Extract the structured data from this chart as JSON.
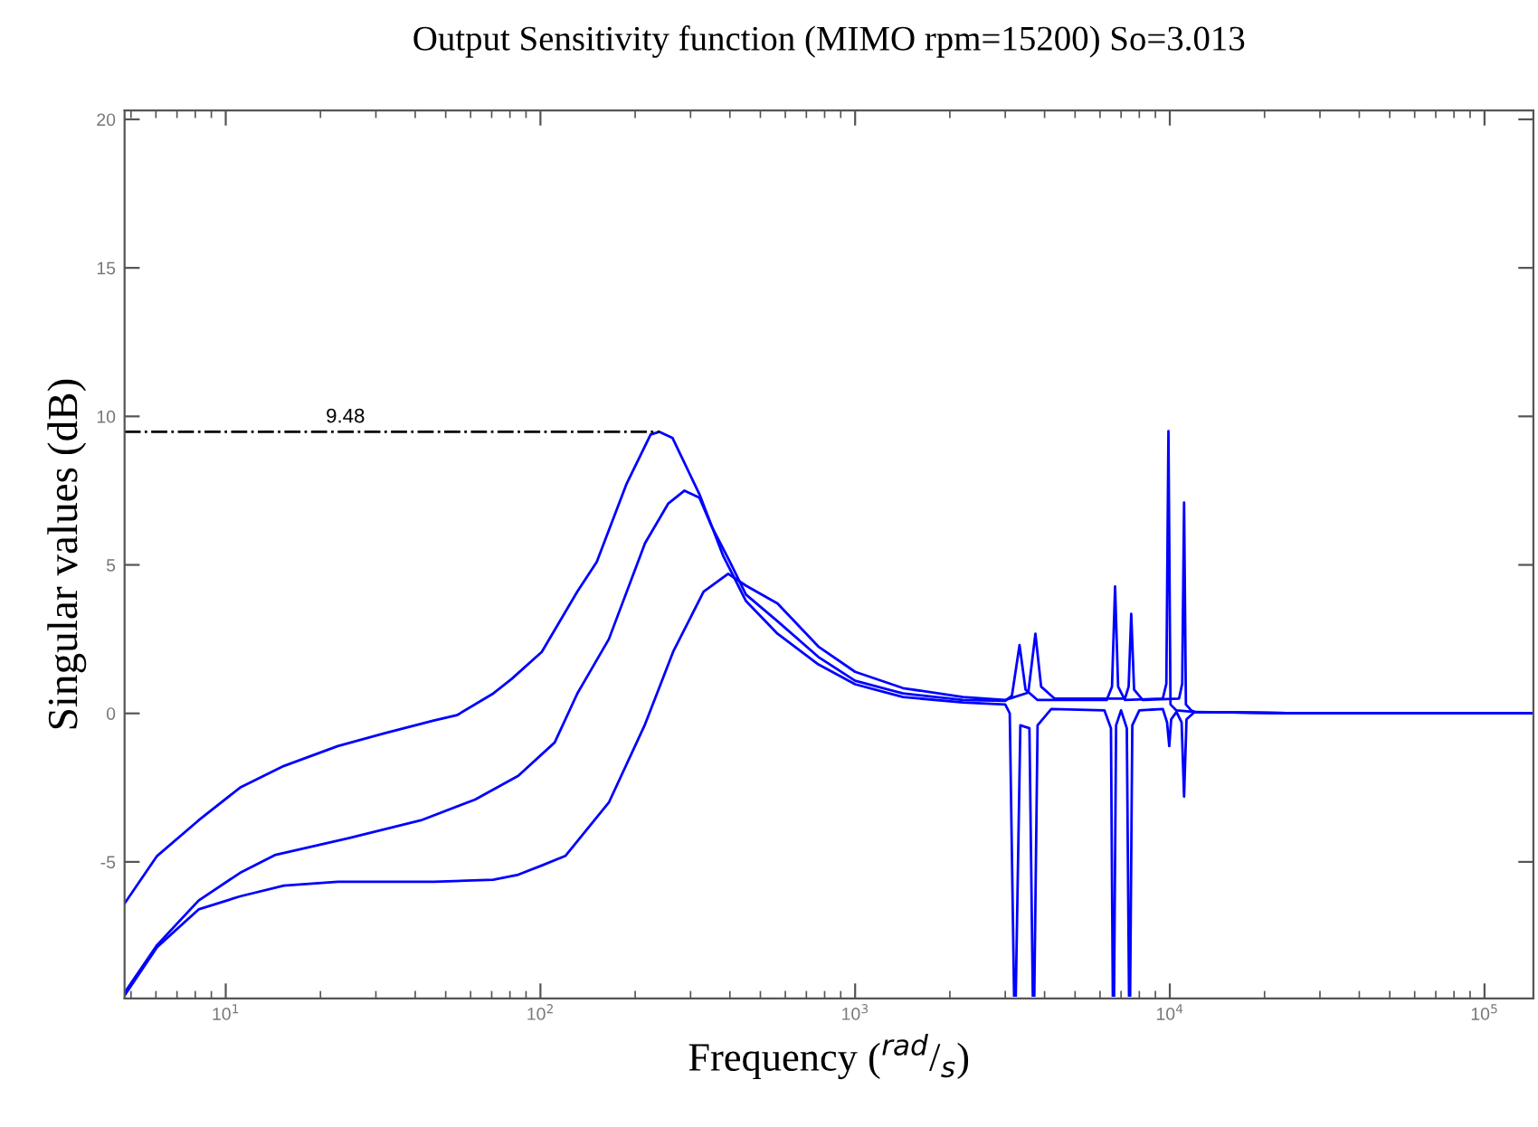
{
  "chart_data": {
    "type": "line",
    "title": "Output Sensitivity function (MIMO rpm=15200) So=3.013",
    "xlabel": "Frequency ($^{rad}$/$_{s}$)",
    "ylabel": "Singular values (dB)",
    "log": "x",
    "grid": false,
    "marker": "none",
    "line_style": "solid",
    "xlim": [
      4.77,
      143000
    ],
    "ylim": [
      -9.6,
      20.3
    ],
    "xticks": [
      {
        "value": 10,
        "label": "10$^{1}$"
      },
      {
        "value": 100,
        "label": "10$^{2}$"
      },
      {
        "value": 1000,
        "label": "10$^{3}$"
      },
      {
        "value": 10000,
        "label": "10$^{4}$"
      },
      {
        "value": 100000,
        "label": "10$^{5}$"
      }
    ],
    "yticks": [
      -5,
      0,
      5,
      10,
      15,
      20
    ],
    "annotations": [
      {
        "text": "9.48",
        "x": 24,
        "y": 9.48
      }
    ],
    "series": [
      {
        "color": "#0000ff",
        "x": [
          4.77,
          6.05,
          8.2,
          11.1,
          15.3,
          22.7,
          32,
          45.8,
          54.3,
          70.8,
          81,
          101,
          131,
          151,
          188,
          224,
          239,
          263,
          320,
          381,
          450,
          567,
          764,
          1000,
          1420,
          2200,
          3000,
          3100,
          3200,
          3220,
          3240,
          3350,
          3580,
          3670,
          3690,
          3710,
          3800,
          4200,
          6200,
          6500,
          6590,
          6620,
          6650,
          6750,
          7000,
          7300,
          7420,
          7450,
          7480,
          7600,
          8000,
          9500,
          9800,
          9960,
          10100,
          10500,
          10900,
          11100,
          11300,
          12000,
          27000,
          143000
        ],
        "values": [
          -6.4,
          -4.8,
          -3.6,
          -2.5,
          -1.77,
          -1.1,
          -0.67,
          -0.24,
          -0.06,
          0.67,
          1.16,
          2.07,
          4.1,
          5.1,
          7.74,
          9.39,
          9.48,
          9.27,
          7.38,
          5.3,
          3.78,
          2.68,
          1.65,
          0.98,
          0.55,
          0.37,
          0.3,
          0.0,
          -9.5,
          null,
          -9.5,
          -0.4,
          -0.5,
          -9.5,
          null,
          -9.5,
          -0.4,
          0.15,
          0.1,
          -0.5,
          -9.5,
          null,
          -9.5,
          -0.4,
          0.1,
          -0.5,
          -9.5,
          null,
          -9.5,
          -0.4,
          0.1,
          0.15,
          -0.3,
          -1.1,
          -0.2,
          0.05,
          -0.3,
          -2.8,
          -0.2,
          0.05,
          0.0,
          0.0
        ]
      },
      {
        "color": "#0000ff",
        "x": [
          4.77,
          6.05,
          8.2,
          11.1,
          14.4,
          24.6,
          41.7,
          62,
          85,
          111,
          131,
          165,
          215,
          255,
          287,
          320,
          350,
          400,
          450,
          567,
          764,
          1000,
          1420,
          2200,
          3000,
          3150,
          3330,
          3480,
          3800,
          6300,
          6550,
          6700,
          6850,
          7200,
          9500,
          9750,
          9900,
          10050,
          10500,
          12000,
          27000,
          143000
        ],
        "values": [
          -9.4,
          -7.8,
          -6.3,
          -5.37,
          -4.76,
          -4.2,
          -3.6,
          -2.9,
          -2.1,
          -0.98,
          0.67,
          2.5,
          5.73,
          7.07,
          7.5,
          7.26,
          6.3,
          5.1,
          4.0,
          3.1,
          1.9,
          1.1,
          0.67,
          0.45,
          0.42,
          0.6,
          2.3,
          0.8,
          0.45,
          0.45,
          0.9,
          4.27,
          0.9,
          0.45,
          0.5,
          1.0,
          9.5,
          0.3,
          0.1,
          0.05,
          0.0,
          0.0
        ]
      },
      {
        "color": "#0000ff",
        "x": [
          4.77,
          6.05,
          8.2,
          11.1,
          15.3,
          22.7,
          32,
          45.8,
          70.8,
          85,
          101,
          120,
          165,
          215,
          264,
          330,
          395,
          450,
          567,
          764,
          1000,
          1420,
          2200,
          3000,
          3550,
          3740,
          3900,
          4300,
          7200,
          7400,
          7540,
          7700,
          8200,
          10700,
          10950,
          11100,
          11250,
          11700,
          12000,
          27000,
          143000
        ],
        "values": [
          -9.5,
          -7.87,
          -6.6,
          -6.16,
          -5.8,
          -5.67,
          -5.67,
          -5.67,
          -5.6,
          -5.43,
          -5.12,
          -4.8,
          -3.0,
          -0.37,
          2.07,
          4.1,
          4.7,
          4.3,
          3.7,
          2.25,
          1.4,
          0.85,
          0.55,
          0.45,
          0.7,
          2.68,
          0.9,
          0.5,
          0.5,
          0.9,
          3.35,
          0.8,
          0.45,
          0.5,
          1.0,
          7.1,
          0.3,
          0.1,
          0.05,
          0.0,
          0.0
        ]
      },
      {
        "color": "#000000",
        "line_style": "dashdot",
        "x": [
          4.77,
          239
        ],
        "values": [
          9.48,
          9.48
        ]
      }
    ]
  }
}
